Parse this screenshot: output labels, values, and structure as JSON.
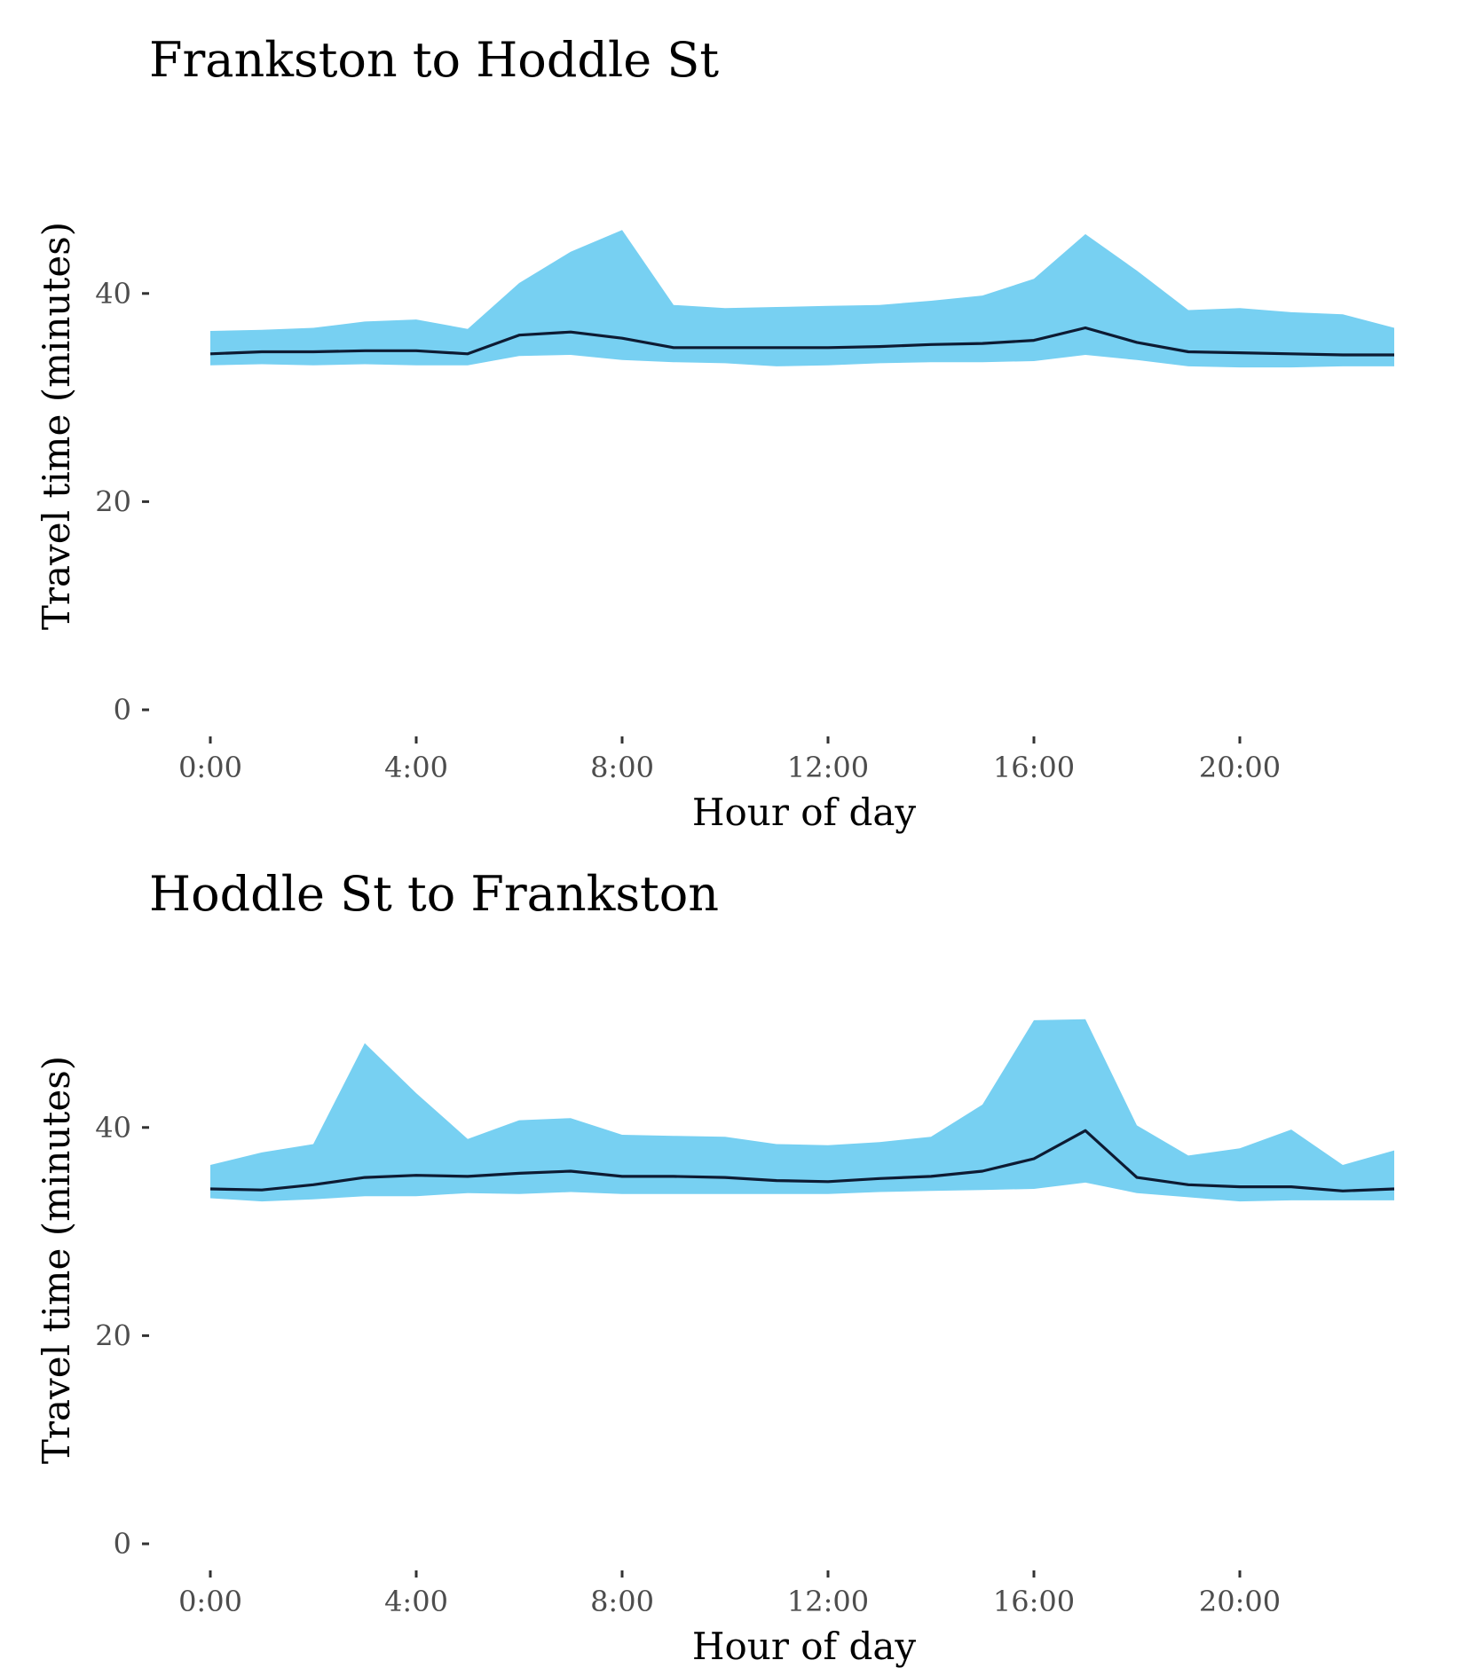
{
  "colors": {
    "band": "#77d0f2",
    "line": "#0d1b33",
    "tick": "#333333"
  },
  "chart_data": [
    {
      "type": "area",
      "title": "Frankston to Hoddle St",
      "xlabel": "Hour of day",
      "ylabel": "Travel time (minutes)",
      "xlim": [
        0,
        23
      ],
      "ylim": [
        0,
        52
      ],
      "x_ticks": [
        0,
        4,
        8,
        12,
        16,
        20
      ],
      "x_tick_labels": [
        "0:00",
        "4:00",
        "8:00",
        "12:00",
        "16:00",
        "20:00"
      ],
      "y_ticks": [
        0,
        20,
        40
      ],
      "y_tick_labels": [
        "0",
        "20",
        "40"
      ],
      "x": [
        0,
        1,
        2,
        3,
        4,
        5,
        6,
        7,
        8,
        9,
        10,
        11,
        12,
        13,
        14,
        15,
        16,
        17,
        18,
        19,
        20,
        21,
        22,
        23
      ],
      "band_upper": [
        36.4,
        36.5,
        36.7,
        37.3,
        37.5,
        36.6,
        41.0,
        44.0,
        46.1,
        38.9,
        38.6,
        38.7,
        38.8,
        38.9,
        39.3,
        39.8,
        41.4,
        45.7,
        42.2,
        38.4,
        38.6,
        38.2,
        38.0,
        36.7
      ],
      "band_lower": [
        33.1,
        33.2,
        33.1,
        33.2,
        33.1,
        33.1,
        34.0,
        34.1,
        33.6,
        33.4,
        33.3,
        33.0,
        33.1,
        33.3,
        33.4,
        33.4,
        33.5,
        34.1,
        33.6,
        33.0,
        32.9,
        32.9,
        33.0,
        33.0
      ],
      "median": [
        34.2,
        34.4,
        34.4,
        34.5,
        34.5,
        34.2,
        36.0,
        36.3,
        35.7,
        34.8,
        34.8,
        34.8,
        34.8,
        34.9,
        35.1,
        35.2,
        35.5,
        36.7,
        35.3,
        34.4,
        34.3,
        34.2,
        34.1,
        34.1
      ],
      "grid": false,
      "legend": "none"
    },
    {
      "type": "area",
      "title": "Hoddle St to Frankston",
      "xlabel": "Hour of day",
      "ylabel": "Travel time (minutes)",
      "xlim": [
        0,
        23
      ],
      "ylim": [
        0,
        52
      ],
      "x_ticks": [
        0,
        4,
        8,
        12,
        16,
        20
      ],
      "x_tick_labels": [
        "0:00",
        "4:00",
        "8:00",
        "12:00",
        "16:00",
        "20:00"
      ],
      "y_ticks": [
        0,
        20,
        40
      ],
      "y_tick_labels": [
        "0",
        "20",
        "40"
      ],
      "x": [
        0,
        1,
        2,
        3,
        4,
        5,
        6,
        7,
        8,
        9,
        10,
        11,
        12,
        13,
        14,
        15,
        16,
        17,
        18,
        19,
        20,
        21,
        22,
        23
      ],
      "band_upper": [
        36.4,
        37.6,
        38.4,
        48.1,
        43.3,
        38.9,
        40.7,
        40.9,
        39.3,
        39.2,
        39.1,
        38.4,
        38.3,
        38.6,
        39.1,
        42.2,
        50.3,
        50.4,
        40.2,
        37.3,
        38.0,
        39.8,
        36.4,
        37.8
      ],
      "band_lower": [
        33.2,
        32.9,
        33.1,
        33.4,
        33.4,
        33.7,
        33.6,
        33.8,
        33.6,
        33.6,
        33.6,
        33.6,
        33.6,
        33.8,
        33.9,
        34.0,
        34.1,
        34.7,
        33.7,
        33.3,
        32.9,
        33.0,
        33.0,
        33.0
      ],
      "median": [
        34.1,
        34.0,
        34.5,
        35.2,
        35.4,
        35.3,
        35.6,
        35.8,
        35.3,
        35.3,
        35.2,
        34.9,
        34.8,
        35.1,
        35.3,
        35.8,
        37.0,
        39.7,
        35.2,
        34.5,
        34.3,
        34.3,
        33.9,
        34.1
      ],
      "grid": false,
      "legend": "none"
    }
  ]
}
